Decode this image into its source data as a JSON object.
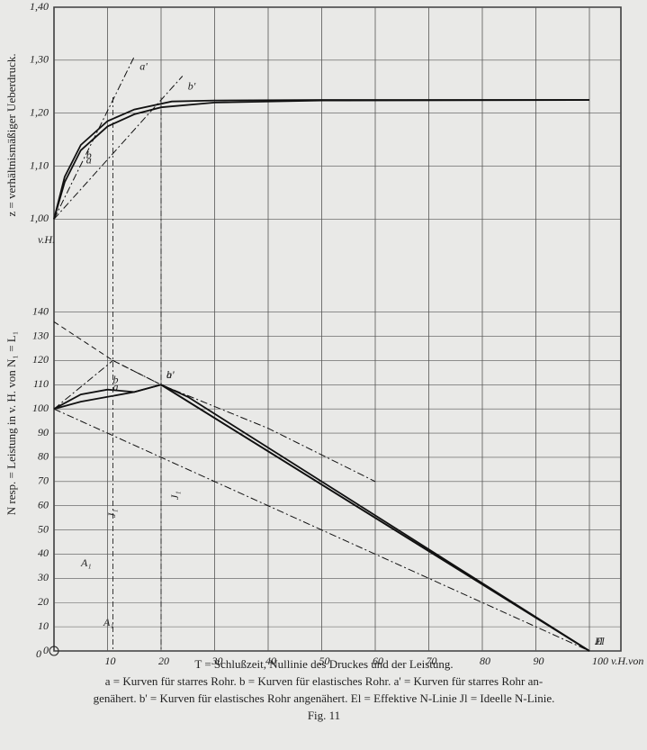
{
  "chart_data": {
    "type": "line",
    "xlim": [
      0,
      100
    ],
    "xticks": [
      10,
      20,
      30,
      40,
      50,
      60,
      70,
      80,
      90,
      {
        "value": 100,
        "label": "100 v.H.von T"
      }
    ],
    "ylim": [
      0,
      266
    ],
    "yticks": [
      0,
      10,
      20,
      30,
      40,
      50,
      60,
      70,
      80,
      90,
      100,
      110,
      120,
      130,
      140
    ],
    "y2lim": [
      0.185,
      1.4
    ],
    "y2ticks": [
      {
        "value": 1.0,
        "label": "1,00"
      },
      {
        "value": 1.1,
        "label": "1,10"
      },
      {
        "value": 1.2,
        "label": "1,20"
      },
      {
        "value": 1.3,
        "label": "1,30"
      },
      {
        "value": 1.4,
        "label": "1,40"
      }
    ],
    "y_label": "N resp. = Leistung in v. H. von N₁ = L₁",
    "y2_label": "z = verhältnismäßiger Ueberdruck.",
    "y2_unit": "v.H.",
    "origin_label": "0",
    "grid": true,
    "annotations": [
      "A₁",
      "A₁",
      "J₁",
      "J₁"
    ],
    "series": [
      {
        "name": "a",
        "axis": "y2",
        "style": "solid",
        "x": [
          0,
          2,
          5,
          10,
          15,
          20,
          30,
          50,
          100
        ],
        "values": [
          1.0,
          1.07,
          1.13,
          1.175,
          1.198,
          1.211,
          1.22,
          1.224,
          1.225
        ]
      },
      {
        "name": "b",
        "axis": "y2",
        "style": "solid",
        "x": [
          0,
          2,
          5,
          10,
          15,
          22,
          30,
          50,
          100
        ],
        "values": [
          1.0,
          1.08,
          1.14,
          1.185,
          1.207,
          1.222,
          1.224,
          1.225,
          1.225
        ]
      },
      {
        "name": "a'",
        "axis": "y2",
        "style": "dashdot",
        "x": [
          0,
          11,
          15
        ],
        "values": [
          1.0,
          1.225,
          1.307
        ]
      },
      {
        "name": "b'",
        "axis": "y2",
        "style": "dashdot",
        "x": [
          0,
          20,
          24
        ],
        "values": [
          1.0,
          1.225,
          1.27
        ]
      },
      {
        "name": "a",
        "axis": "y",
        "style": "solid",
        "x": [
          0,
          5,
          10,
          15,
          20,
          100
        ],
        "values": [
          100,
          103,
          105,
          107,
          110,
          0
        ]
      },
      {
        "name": "b",
        "axis": "y",
        "style": "solid",
        "x": [
          0,
          5,
          10,
          15,
          20,
          25,
          100
        ],
        "values": [
          100,
          106,
          108,
          107,
          110,
          105,
          0
        ]
      },
      {
        "name": "a'",
        "axis": "y",
        "style": "dashed",
        "x": [
          0,
          11,
          20
        ],
        "values": [
          136,
          120,
          110
        ]
      },
      {
        "name": "b'",
        "axis": "y",
        "style": "dashdot",
        "x": [
          0,
          11,
          20,
          40,
          60
        ],
        "values": [
          100,
          120,
          110,
          92,
          70
        ]
      },
      {
        "name": "El",
        "axis": "y",
        "style": "solid",
        "x": [
          20,
          100
        ],
        "values": [
          110,
          0
        ]
      },
      {
        "name": "Jl",
        "axis": "y",
        "style": "dashdot",
        "x": [
          0,
          100
        ],
        "values": [
          100,
          0
        ]
      }
    ],
    "caption": [
      "T = Schlußzeit, Nullinie des Druckes und der Leistung.",
      "a = Kurven für starres Rohr.  b = Kurven für elastisches Rohr.  a' = Kurven für starres Rohr an-",
      "genähert. b' = Kurven für elastisches Rohr angenähert. El = Effektive N-Linie  Jl = Ideelle N-Linie.",
      "Fig. 11"
    ]
  }
}
